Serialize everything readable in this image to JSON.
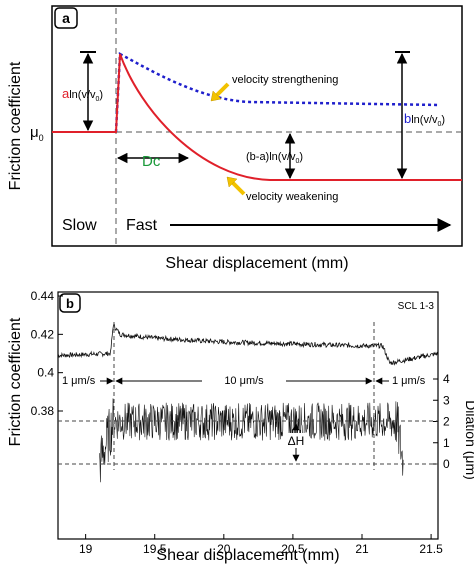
{
  "panel_a": {
    "label": "a",
    "ylabel": "Friction coefficient",
    "xlabel": "Shear displacement (mm)",
    "mu0_label": "μ",
    "mu0_sub": "0",
    "label_strengthening": "velocity strengthening",
    "label_weakening": "velocity weakening",
    "dc_label": "Dc",
    "a_term": {
      "coef": "a",
      "rest": "ln(v/v",
      "sub": "0",
      "close": ")"
    },
    "b_term": {
      "coef": "b",
      "rest": "ln(v/v",
      "sub": "0",
      "close": ")"
    },
    "ba_term": {
      "rest": "(b-a)ln(v/v",
      "sub": "0",
      "close": ")"
    },
    "slow_label": "Slow",
    "fast_label": "Fast",
    "colors": {
      "strengthening": "#1f1fcc",
      "weakening": "#e0202a",
      "a_color": "#e0202a",
      "b_color": "#1f1fcc",
      "dc_color": "#1a9a3a",
      "arrow_yellow": "#f2c200"
    }
  },
  "panel_b": {
    "label": "b",
    "sample_label": "SCL 1-3",
    "ylabel_left": "Friction coefficient",
    "ylabel_right": "Dilation (μm)",
    "xlabel": "Shear displacement (mm)",
    "velocity_labels": [
      "1 μm/s",
      "10 μm/s",
      "1 μm/s"
    ],
    "delta_h_label": "ΔH"
  },
  "chart_data": [
    {
      "type": "line",
      "title": "",
      "xlabel": "Shear displacement (mm)",
      "ylabel": "Friction coefficient",
      "series": [
        {
          "name": "velocity strengthening",
          "x": [
            0,
            1.0,
            1.1,
            1.5,
            2.0,
            3.0,
            4.0,
            6.0
          ],
          "y": [
            0.0,
            0.0,
            1.0,
            0.85,
            0.72,
            0.6,
            0.56,
            0.55
          ]
        },
        {
          "name": "velocity weakening",
          "x": [
            0,
            1.0,
            1.1,
            1.5,
            2.0,
            3.0,
            4.0,
            6.0
          ],
          "y": [
            0.0,
            0.0,
            1.0,
            0.2,
            -0.3,
            -0.5,
            -0.55,
            -0.55
          ]
        }
      ]
    },
    {
      "type": "line",
      "title": "",
      "xlabel": "Shear displacement (mm)",
      "ylabel": "Friction coefficient",
      "ylabel_right": "Dilation (μm)",
      "x_ticks": [
        19,
        19.5,
        20,
        20.5,
        21,
        21.5
      ],
      "y_ticks_left": [
        0.38,
        0.4,
        0.42,
        0.44
      ],
      "y_ticks_right": [
        0,
        1,
        2,
        3,
        4
      ],
      "xlim": [
        18.8,
        21.55
      ],
      "series": [
        {
          "name": "friction",
          "x": [
            18.8,
            19.18,
            19.2,
            19.25,
            19.5,
            20.0,
            20.5,
            21.0,
            21.15,
            21.2,
            21.55
          ],
          "y": [
            0.409,
            0.41,
            0.425,
            0.42,
            0.418,
            0.416,
            0.415,
            0.414,
            0.414,
            0.405,
            0.41
          ]
        },
        {
          "name": "dilation",
          "x": [
            19.1,
            19.2,
            19.5,
            20.0,
            20.5,
            21.0,
            21.25,
            21.3
          ],
          "y": [
            0.0,
            2.0,
            2.0,
            2.0,
            2.0,
            2.0,
            2.0,
            0.0
          ]
        }
      ]
    }
  ]
}
